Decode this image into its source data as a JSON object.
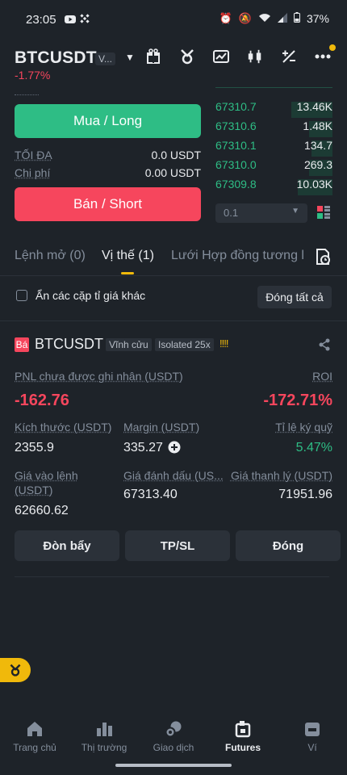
{
  "status_bar": {
    "time": "23:05",
    "battery": "37%"
  },
  "header": {
    "symbol": "BTCUSDT",
    "symbol_tag": "V...",
    "change": "-1.77%",
    "icons": [
      "gift-icon",
      "bot-icon",
      "chart-icon",
      "candlestick-icon",
      "calculator-icon",
      "more-icon"
    ]
  },
  "order_form": {
    "buy_label": "Mua / Long",
    "sell_label": "Bán / Short",
    "max_label": "TỐI ĐA",
    "max_value": "0.0 USDT",
    "cost_label": "Chi phí",
    "cost_value": "0.00 USDT"
  },
  "orderbook": {
    "rows": [
      {
        "price": "67310.7",
        "amount": "13.46K",
        "depth": 0.35
      },
      {
        "price": "67310.6",
        "amount": "1.48K",
        "depth": 0.2
      },
      {
        "price": "67310.1",
        "amount": "134.7",
        "depth": 0.18
      },
      {
        "price": "67310.0",
        "amount": "269.3",
        "depth": 0.2
      },
      {
        "price": "67309.8",
        "amount": "10.03K",
        "depth": 0.3
      }
    ],
    "depth_select": "0.1"
  },
  "tabs": [
    {
      "label": "Lệnh mở (0)"
    },
    {
      "label": "Vị thế (1)"
    },
    {
      "label": "Lưới Hợp đồng tương l"
    }
  ],
  "filter": {
    "hide_pairs_label": "Ẩn các cặp tỉ giá khác",
    "close_all_label": "Đóng tất cả"
  },
  "position": {
    "badge": "Bá",
    "symbol": "BTCUSDT",
    "type_tag": "Vĩnh cửu",
    "margin_tag": "Isolated 25x",
    "bars": "!!!!",
    "pnl_label": "PNL chưa được ghi nhận (USDT)",
    "pnl_value": "-162.76",
    "roi_label": "ROI",
    "roi_value": "-172.71%",
    "size_label": "Kích thước (USDT)",
    "size_value": "2355.9",
    "margin_label": "Margin (USDT)",
    "margin_value": "335.27",
    "margin_ratio_label": "Tỉ lệ ký quỹ",
    "margin_ratio_value": "5.47%",
    "entry_label_1": "Giá vào lệnh",
    "entry_label_2": "(USDT)",
    "entry_value": "62660.62",
    "mark_label": "Giá đánh dấu (US...",
    "mark_value": "67313.40",
    "liq_label": "Giá thanh lý (USDT)",
    "liq_value": "71951.96",
    "leverage_button": "Đòn bẩy",
    "tpsl_button": "TP/SL",
    "close_button": "Đóng"
  },
  "bottom_nav": [
    {
      "label": "Trang chủ",
      "icon": "home-icon"
    },
    {
      "label": "Thị trường",
      "icon": "market-icon"
    },
    {
      "label": "Giao dịch",
      "icon": "trade-icon"
    },
    {
      "label": "Futures",
      "icon": "futures-icon"
    },
    {
      "label": "Ví",
      "icon": "wallet-icon"
    }
  ],
  "colors": {
    "background": "#1e2329",
    "buy": "#2ebd85",
    "sell": "#f6465d",
    "accent": "#f0b90b"
  }
}
